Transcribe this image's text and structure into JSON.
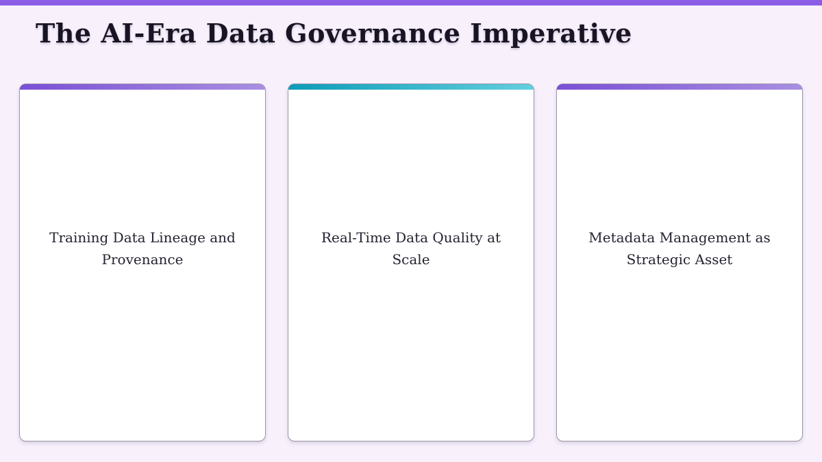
{
  "page": {
    "title": "The AI-Era Data Governance Imperative",
    "accent_color": "#8b5ce6",
    "background_color": "#f8f1fc"
  },
  "cards": [
    {
      "title": "Training Data Lineage and Provenance",
      "accent_gradient_start": "#7a4fd6",
      "accent_gradient_end": "#a98fe2"
    },
    {
      "title": "Real-Time Data Quality at Scale",
      "accent_gradient_start": "#0d9cb8",
      "accent_gradient_end": "#62cfdf"
    },
    {
      "title": "Metadata Management as Strategic Asset",
      "accent_gradient_start": "#7a4fd6",
      "accent_gradient_end": "#a98fe2"
    }
  ]
}
